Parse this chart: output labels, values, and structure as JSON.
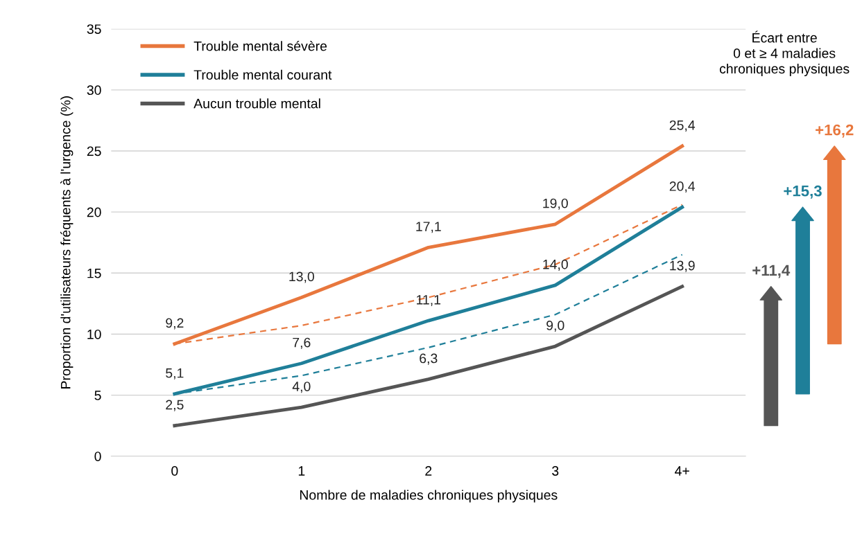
{
  "chart_data": {
    "type": "line",
    "xlabel": "Nombre de maladies chroniques physiques",
    "ylabel": "Proportion d'utilisateurs fréquents à l'urgence (%)",
    "categories": [
      "0",
      "1",
      "2",
      "3",
      "4+"
    ],
    "series": [
      {
        "name": "Trouble mental sévère",
        "color": "#e8773d",
        "values": [
          9.2,
          13.0,
          17.1,
          19.0,
          25.4
        ],
        "value_labels": [
          "9,2",
          "13,0",
          "17,1",
          "19,0",
          "25,4"
        ]
      },
      {
        "name": "Trouble mental courant",
        "color": "#1f7f99",
        "values": [
          5.1,
          7.6,
          11.1,
          14.0,
          20.4
        ],
        "value_labels": [
          "5,1",
          "7,6",
          "11,1",
          "14,0",
          "20,4"
        ]
      },
      {
        "name": "Aucun trouble mental",
        "color": "#555555",
        "values": [
          2.5,
          4.0,
          6.3,
          9.0,
          13.9
        ],
        "value_labels": [
          "2,5",
          "4,0",
          "6,3",
          "9,0",
          "13,9"
        ]
      },
      {
        "color": "#e8773d",
        "line_style": "dashed",
        "values": [
          9.2,
          10.7,
          13.0,
          15.7,
          20.6
        ]
      },
      {
        "color": "#1f7f99",
        "line_style": "dashed",
        "values": [
          5.1,
          6.6,
          8.9,
          11.6,
          16.5
        ]
      }
    ],
    "annotations": [
      "Écart entre\n0 et ≥ 4 maladies\nchroniques physiques",
      "+11,4",
      "+15,3",
      "+16,2"
    ],
    "ylim": [
      0,
      35
    ],
    "yticks": [
      0,
      5,
      10,
      15,
      20,
      25,
      30,
      35
    ],
    "grid": "y",
    "legend": "top left"
  }
}
